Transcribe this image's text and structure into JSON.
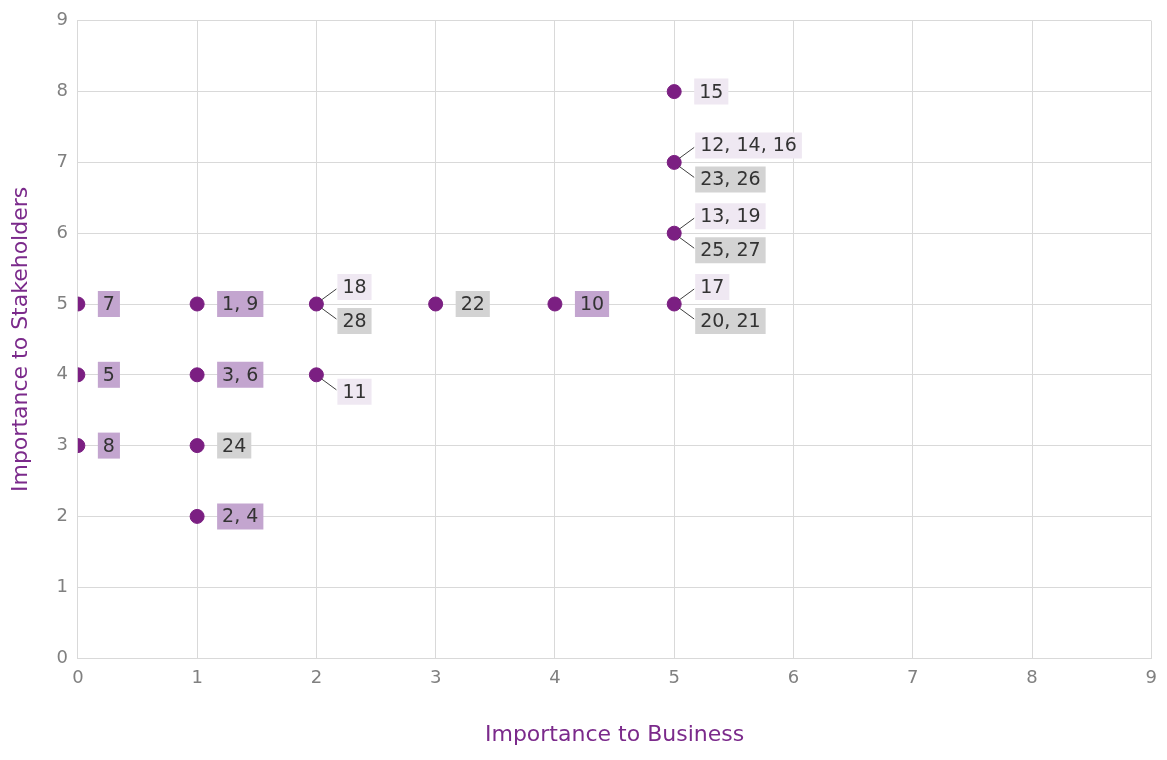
{
  "chart_data": {
    "type": "scatter",
    "xlabel": "Importance to Business",
    "ylabel": "Importance to Stakeholders",
    "x": [
      0,
      0,
      0,
      1,
      1,
      1,
      1,
      2,
      2,
      3,
      4,
      5,
      5,
      5,
      5
    ],
    "series": [
      {
        "color": "#7b1f82",
        "values": [
          5,
          4,
          3,
          5,
          4,
          3,
          2,
          5,
          4,
          5,
          5,
          8,
          7,
          6,
          5
        ]
      }
    ],
    "xlim": [
      0,
      9
    ],
    "ylim": [
      0,
      9
    ],
    "xticks": [
      0,
      1,
      2,
      3,
      4,
      5,
      6,
      7,
      8,
      9
    ],
    "yticks": [
      0,
      1,
      2,
      3,
      4,
      5,
      6,
      7,
      8,
      9
    ],
    "grid": true,
    "marker": "circle",
    "legend": false,
    "annotations": [
      {
        "text": "7",
        "x": 0,
        "y": 5
      },
      {
        "text": "5",
        "x": 0,
        "y": 4
      },
      {
        "text": "8",
        "x": 0,
        "y": 3
      },
      {
        "text": "1, 9",
        "x": 1,
        "y": 5
      },
      {
        "text": "3, 6",
        "x": 1,
        "y": 4
      },
      {
        "text": "24",
        "x": 1,
        "y": 3
      },
      {
        "text": "2, 4",
        "x": 1,
        "y": 2
      },
      {
        "text": "18",
        "x": 2,
        "y": 5
      },
      {
        "text": "28",
        "x": 2,
        "y": 5
      },
      {
        "text": "11",
        "x": 2,
        "y": 4
      },
      {
        "text": "22",
        "x": 3,
        "y": 5
      },
      {
        "text": "10",
        "x": 4,
        "y": 5
      },
      {
        "text": "15",
        "x": 5,
        "y": 8
      },
      {
        "text": "12, 14, 16",
        "x": 5,
        "y": 7
      },
      {
        "text": "23, 26",
        "x": 5,
        "y": 7
      },
      {
        "text": "13, 19",
        "x": 5,
        "y": 6
      },
      {
        "text": "25, 27",
        "x": 5,
        "y": 6
      },
      {
        "text": "17",
        "x": 5,
        "y": 5
      },
      {
        "text": "20, 21",
        "x": 5,
        "y": 5
      }
    ]
  }
}
